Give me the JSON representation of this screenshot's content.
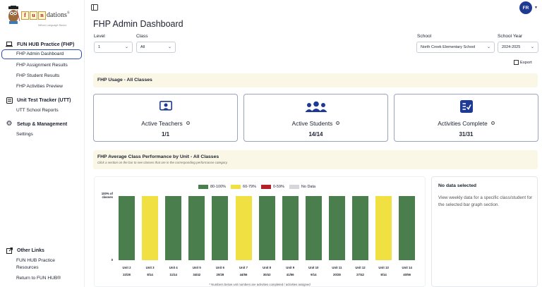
{
  "logo": {
    "letters": [
      "f",
      "u",
      "n"
    ],
    "word": "dations",
    "registered": "®",
    "tagline": "Wilson Language Basics"
  },
  "sidebar": {
    "sections": [
      {
        "label": "FUN HUB Practice (FHP)",
        "icon": "laptop-icon",
        "items": [
          "FHP Admin Dashboard",
          "FHP Assignment Results",
          "FHP Student Results",
          "FHP Activities Preview"
        ]
      },
      {
        "label": "Unit Test Tracker (UTT)",
        "icon": "checklist-icon",
        "items": [
          "UTT School Reports"
        ]
      },
      {
        "label": "Setup & Management",
        "icon": "gear-icon",
        "items": [
          "Settings"
        ]
      }
    ],
    "active_item": "FHP Admin Dashboard",
    "other_links": {
      "label": "Other Links",
      "icon": "external-link-icon",
      "items": [
        "FUN HUB Practice",
        "Resources",
        "Return to FUN HUB®"
      ]
    }
  },
  "topbar": {
    "avatar_initials": "FR"
  },
  "page": {
    "title": "FHP Admin Dashboard"
  },
  "filters": {
    "level": {
      "label": "Level",
      "value": "1"
    },
    "class": {
      "label": "Class",
      "value": "All"
    },
    "school": {
      "label": "School",
      "value": "North Creek Elementary School"
    },
    "school_year": {
      "label": "School Year",
      "value": "2024-2025"
    }
  },
  "export_label": "Export",
  "usage": {
    "title": "FHP Usage - All Classes",
    "cards": [
      {
        "label": "Active Teachers",
        "value": "1/1",
        "icon": "teacher-icon"
      },
      {
        "label": "Active Students",
        "value": "14/14",
        "icon": "students-icon"
      },
      {
        "label": "Activities Complete",
        "value": "31/31",
        "icon": "checklist-icon"
      }
    ]
  },
  "performance": {
    "title": "FHP Average Class Performance by Unit - All Classes",
    "subtitle": "Click a section on the bar to see classes that are in the corresponding performance category."
  },
  "colors": {
    "green": "#4a7f4d",
    "yellow": "#f0e042",
    "red": "#b3202a",
    "gray": "#d5d7db",
    "accent": "#1f3a93"
  },
  "chart_data": {
    "type": "bar",
    "stacked": true,
    "legend": [
      "80-100%",
      "60-79%",
      "0-59%",
      "No Data"
    ],
    "legend_position": "top-center",
    "y_ticks": [
      "100% of classes",
      "0"
    ],
    "ylim": [
      0,
      100
    ],
    "categories": [
      "Unit 2",
      "Unit 3",
      "Unit 4",
      "Unit 5",
      "Unit 6",
      "Unit 7",
      "Unit 8",
      "Unit 9",
      "Unit 10",
      "Unit 11",
      "Unit 12",
      "Unit 13",
      "Unit 14"
    ],
    "sublabels": [
      "22/28",
      "8/14",
      "11/14",
      "34/42",
      "20/28",
      "44/56",
      "30/42",
      "41/56",
      "9/14",
      "20/28",
      "27/42",
      "8/14",
      "40/56"
    ],
    "series": [
      {
        "name": "80-100%",
        "values": [
          100,
          0,
          100,
          100,
          100,
          0,
          100,
          100,
          100,
          100,
          100,
          0,
          100
        ]
      },
      {
        "name": "60-79%",
        "values": [
          0,
          100,
          0,
          0,
          0,
          100,
          0,
          0,
          0,
          0,
          0,
          100,
          0
        ]
      },
      {
        "name": "0-59%",
        "values": [
          0,
          0,
          0,
          0,
          0,
          0,
          0,
          0,
          0,
          0,
          0,
          0,
          0
        ]
      },
      {
        "name": "No Data",
        "values": [
          0,
          0,
          0,
          0,
          0,
          0,
          0,
          0,
          0,
          0,
          0,
          0,
          0
        ]
      }
    ],
    "footnote": "* Numbers below unit numbers are activities completed / activities assigned"
  },
  "detail_panel": {
    "title": "No data selected",
    "text": "View weekly data for a specific class/student for the selected bar graph section."
  }
}
